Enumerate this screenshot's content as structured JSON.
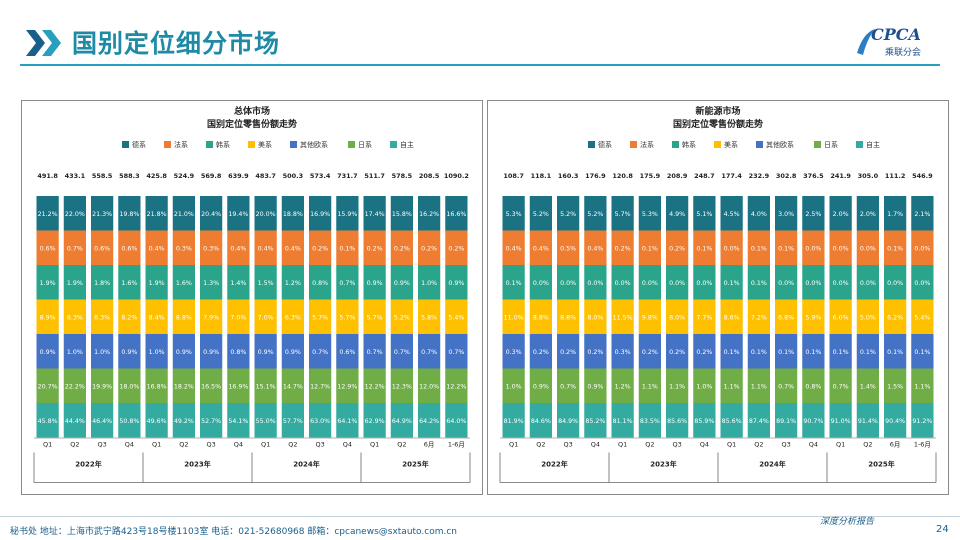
{
  "page": {
    "title": "国别定位细分市场",
    "logo_text": "CPCA",
    "logo_sub": "乘联分会",
    "footer": "秘书处  地址：上海市武宁路423号18号楼1103室  电话：021-52680968   邮箱：cpcanews@sxtauto.com.cn",
    "footer_right": "深度分析报告",
    "page_number": "24"
  },
  "colors": {
    "accent": "#1e8aa6",
    "德系": "#1a7283",
    "法系": "#ee7d31",
    "韩系": "#2aa58b",
    "美系": "#ffc000",
    "其他欧系": "#4472c4",
    "日系": "#70ad47",
    "自主": "#33aba0"
  },
  "chart_data": [
    {
      "type": "bar",
      "stacked": "percent",
      "title": "总体市场",
      "subtitle": "国别定位零售份额走势",
      "legend": [
        "德系",
        "法系",
        "韩系",
        "美系",
        "其他欧系",
        "日系",
        "自主"
      ],
      "legend_position": "top",
      "categories": [
        "Q1",
        "Q2",
        "Q3",
        "Q4",
        "Q1",
        "Q2",
        "Q3",
        "Q4",
        "Q1",
        "Q2",
        "Q3",
        "Q4",
        "Q1",
        "Q2",
        "6月",
        "1-6月"
      ],
      "year_groups": [
        {
          "label": "2022年",
          "count": 4
        },
        {
          "label": "2023年",
          "count": 4
        },
        {
          "label": "2024年",
          "count": 4
        },
        {
          "label": "2025年",
          "count": 4
        }
      ],
      "totals": [
        "491.8",
        "433.1",
        "558.5",
        "588.3",
        "425.8",
        "524.9",
        "569.8",
        "639.9",
        "483.7",
        "500.3",
        "573.4",
        "731.7",
        "511.7",
        "578.5",
        "208.5",
        "1090.2"
      ],
      "series": [
        {
          "name": "自主",
          "labels": [
            "45.8%",
            "44.4%",
            "46.4%",
            "50.8%",
            "49.6%",
            "49.2%",
            "52.7%",
            "54.1%",
            "55.0%",
            "57.7%",
            "63.0%",
            "64.1%",
            "62.9%",
            "64.9%",
            "64.2%",
            "64.0%"
          ]
        },
        {
          "name": "日系",
          "labels": [
            "20.7%",
            "22.2%",
            "19.9%",
            "18.0%",
            "16.8%",
            "18.2%",
            "16.5%",
            "16.9%",
            "15.1%",
            "14.7%",
            "12.7%",
            "12.9%",
            "12.2%",
            "12.3%",
            "12.0%",
            "12.2%"
          ]
        },
        {
          "name": "其他欧系",
          "labels": [
            "0.9%",
            "1.0%",
            "1.0%",
            "0.9%",
            "1.0%",
            "0.9%",
            "0.9%",
            "0.8%",
            "0.9%",
            "0.9%",
            "0.7%",
            "0.6%",
            "0.7%",
            "0.7%",
            "0.7%",
            "0.7%"
          ]
        },
        {
          "name": "美系",
          "labels": [
            "8.9%",
            "8.3%",
            "8.3%",
            "8.2%",
            "8.4%",
            "8.8%",
            "7.9%",
            "7.0%",
            "7.0%",
            "6.3%",
            "5.7%",
            "5.7%",
            "5.7%",
            "5.2%",
            "5.8%",
            "5.4%"
          ]
        },
        {
          "name": "韩系",
          "labels": [
            "1.9%",
            "1.9%",
            "1.8%",
            "1.6%",
            "1.9%",
            "1.6%",
            "1.3%",
            "1.4%",
            "1.5%",
            "1.2%",
            "0.8%",
            "0.7%",
            "0.9%",
            "0.9%",
            "1.0%",
            "0.9%"
          ]
        },
        {
          "name": "法系",
          "labels": [
            "0.6%",
            "0.7%",
            "0.6%",
            "0.6%",
            "0.4%",
            "0.3%",
            "0.3%",
            "0.4%",
            "0.4%",
            "0.4%",
            "0.2%",
            "0.1%",
            "0.2%",
            "0.2%",
            "0.2%",
            "0.2%"
          ]
        },
        {
          "name": "德系",
          "labels": [
            "21.2%",
            "22.0%",
            "21.3%",
            "19.8%",
            "21.8%",
            "21.0%",
            "20.4%",
            "19.4%",
            "20.0%",
            "18.8%",
            "16.9%",
            "15.9%",
            "17.4%",
            "15.8%",
            "16.2%",
            "16.6%"
          ]
        }
      ]
    },
    {
      "type": "bar",
      "stacked": "percent",
      "title": "新能源市场",
      "subtitle": "国别定位零售份额走势",
      "legend": [
        "德系",
        "法系",
        "韩系",
        "美系",
        "其他欧系",
        "日系",
        "自主"
      ],
      "legend_position": "top",
      "categories": [
        "Q1",
        "Q2",
        "Q3",
        "Q4",
        "Q1",
        "Q2",
        "Q3",
        "Q4",
        "Q1",
        "Q2",
        "Q3",
        "Q4",
        "Q1",
        "Q2",
        "6月",
        "1-6月"
      ],
      "year_groups": [
        {
          "label": "2022年",
          "count": 4
        },
        {
          "label": "2023年",
          "count": 4
        },
        {
          "label": "2024年",
          "count": 4
        },
        {
          "label": "2025年",
          "count": 4
        }
      ],
      "totals": [
        "108.7",
        "118.1",
        "160.3",
        "176.9",
        "120.8",
        "175.9",
        "208.9",
        "248.7",
        "177.4",
        "232.9",
        "302.8",
        "376.5",
        "241.9",
        "305.0",
        "111.2",
        "546.9"
      ],
      "series": [
        {
          "name": "自主",
          "labels": [
            "81.9%",
            "84.6%",
            "84.9%",
            "85.2%",
            "81.1%",
            "83.5%",
            "85.6%",
            "85.9%",
            "85.6%",
            "87.4%",
            "89.1%",
            "90.7%",
            "91.0%",
            "91.4%",
            "90.4%",
            "91.2%"
          ]
        },
        {
          "name": "日系",
          "labels": [
            "1.0%",
            "0.9%",
            "0.7%",
            "0.9%",
            "1.2%",
            "1.1%",
            "1.1%",
            "1.0%",
            "1.1%",
            "1.1%",
            "0.7%",
            "0.8%",
            "0.7%",
            "1.4%",
            "1.5%",
            "1.1%"
          ]
        },
        {
          "name": "其他欧系",
          "labels": [
            "0.3%",
            "0.2%",
            "0.2%",
            "0.2%",
            "0.3%",
            "0.2%",
            "0.2%",
            "0.2%",
            "0.1%",
            "0.1%",
            "0.1%",
            "0.1%",
            "0.1%",
            "0.1%",
            "0.1%",
            "0.1%"
          ]
        },
        {
          "name": "美系",
          "labels": [
            "11.0%",
            "8.8%",
            "8.8%",
            "8.0%",
            "11.5%",
            "9.8%",
            "8.0%",
            "7.7%",
            "8.6%",
            "7.2%",
            "6.8%",
            "5.9%",
            "6.0%",
            "5.0%",
            "6.2%",
            "5.4%"
          ]
        },
        {
          "name": "韩系",
          "labels": [
            "0.1%",
            "0.0%",
            "0.0%",
            "0.0%",
            "0.0%",
            "0.0%",
            "0.0%",
            "0.0%",
            "0.1%",
            "0.1%",
            "0.0%",
            "0.0%",
            "0.0%",
            "0.0%",
            "0.0%",
            "0.0%"
          ]
        },
        {
          "name": "法系",
          "labels": [
            "0.4%",
            "0.4%",
            "0.5%",
            "0.4%",
            "0.2%",
            "0.1%",
            "0.2%",
            "0.1%",
            "0.0%",
            "0.1%",
            "0.1%",
            "0.0%",
            "0.0%",
            "0.0%",
            "0.1%",
            "0.0%"
          ]
        },
        {
          "name": "德系",
          "labels": [
            "5.3%",
            "5.2%",
            "5.2%",
            "5.2%",
            "5.7%",
            "5.3%",
            "4.9%",
            "5.1%",
            "4.5%",
            "4.0%",
            "3.0%",
            "2.5%",
            "2.0%",
            "2.0%",
            "1.7%",
            "2.1%"
          ]
        }
      ]
    }
  ]
}
